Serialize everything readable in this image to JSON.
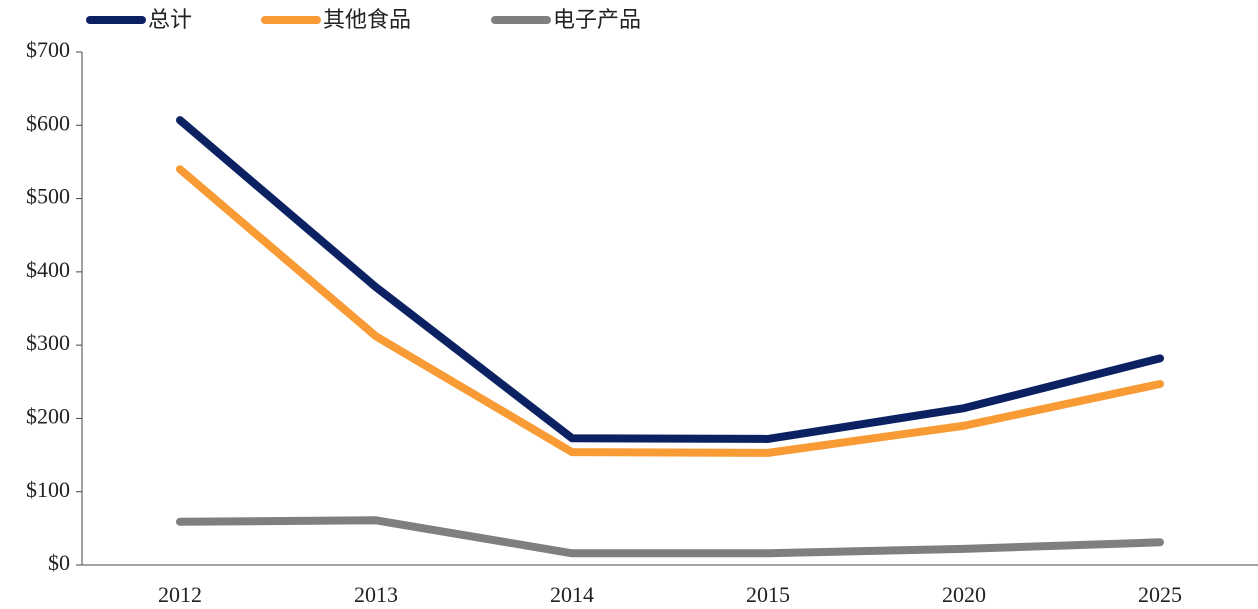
{
  "chart_data": {
    "type": "line",
    "categories": [
      "2012",
      "2013",
      "2014",
      "2015",
      "2020",
      "2025"
    ],
    "series": [
      {
        "name": "总计",
        "color": "#0b2161",
        "values": [
          607,
          379,
          173,
          172,
          214,
          282
        ]
      },
      {
        "name": "其他食品",
        "color": "#f99b35",
        "values": [
          540,
          312,
          154,
          153,
          190,
          247
        ]
      },
      {
        "name": "电子产品",
        "color": "#7f7f7f",
        "values": [
          59,
          61,
          16,
          16,
          22,
          31
        ]
      }
    ],
    "ylim": [
      0,
      700
    ],
    "yticks": [
      {
        "value": 0,
        "label": "$0"
      },
      {
        "value": 100,
        "label": "$100"
      },
      {
        "value": 200,
        "label": "$200"
      },
      {
        "value": 300,
        "label": "$300"
      },
      {
        "value": 400,
        "label": "$400"
      },
      {
        "value": 500,
        "label": "$500"
      },
      {
        "value": 600,
        "label": "$600"
      },
      {
        "value": 700,
        "label": "$700"
      }
    ],
    "legend": "top",
    "grid": false
  }
}
